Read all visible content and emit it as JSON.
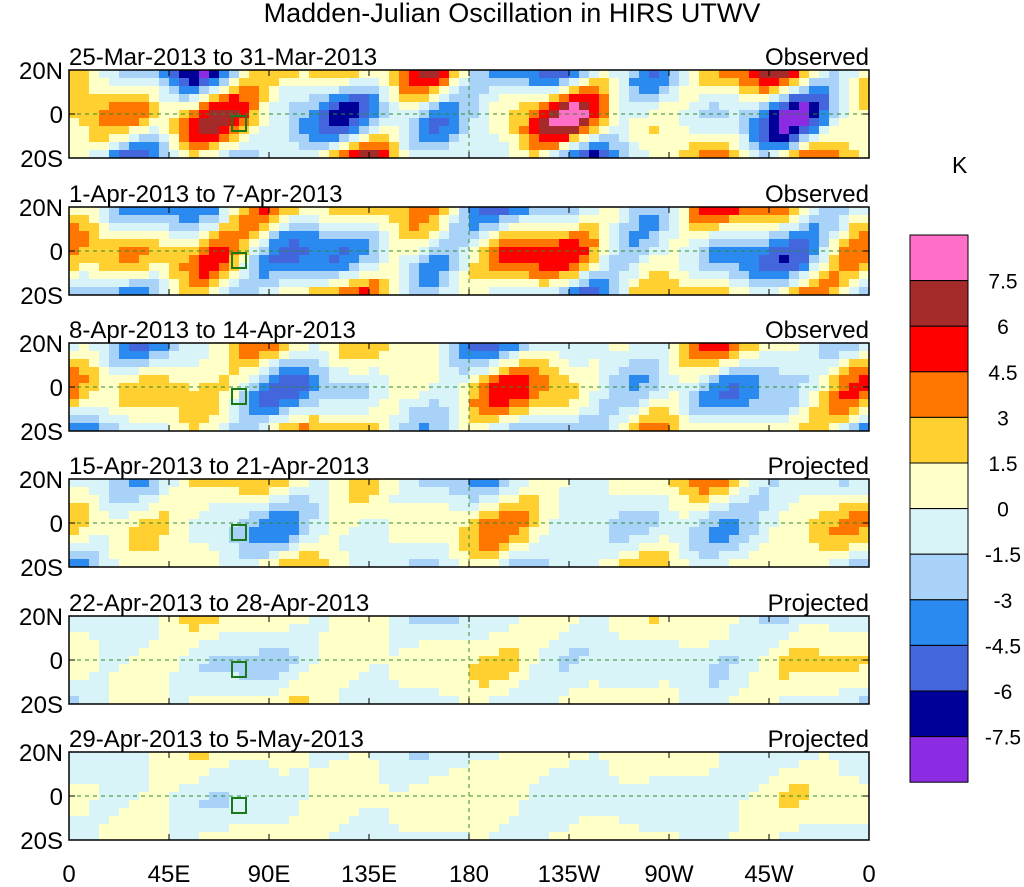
{
  "title": "Madden-Julian Oscillation in HIRS UTWV",
  "unit": "K",
  "lat_labels": [
    "20N",
    "0",
    "20S"
  ],
  "lon_labels": [
    "0",
    "45E",
    "90E",
    "135E",
    "180",
    "135W",
    "90W",
    "45W",
    "0"
  ],
  "panels": [
    {
      "range": "25-Mar-2013 to 31-Mar-2013",
      "status": "Observed",
      "amp": 1.0,
      "phase": 0.0
    },
    {
      "range": "1-Apr-2013 to 7-Apr-2013",
      "status": "Observed",
      "amp": 0.85,
      "phase": 0.5
    },
    {
      "range": "8-Apr-2013 to 14-Apr-2013",
      "status": "Observed",
      "amp": 0.7,
      "phase": 1.0
    },
    {
      "range": "15-Apr-2013 to 21-Apr-2013",
      "status": "Projected",
      "amp": 0.5,
      "phase": 1.5
    },
    {
      "range": "22-Apr-2013 to 28-Apr-2013",
      "status": "Projected",
      "amp": 0.3,
      "phase": 2.0
    },
    {
      "range": "29-Apr-2013 to 5-May-2013",
      "status": "Projected",
      "amp": 0.2,
      "phase": 2.5
    }
  ],
  "colorbar": {
    "colors": [
      "#ff6ec7",
      "#a52a2a",
      "#ff0000",
      "#ff7700",
      "#ffd030",
      "#ffffc8",
      "#d8f4f8",
      "#a8d2f8",
      "#2a8af0",
      "#4466dd",
      "#000099",
      "#8b2be2"
    ],
    "labels": [
      "7.5",
      "6",
      "4.5",
      "3",
      "1.5",
      "0",
      "-1.5",
      "-3",
      "-4.5",
      "-6",
      "-7.5"
    ]
  }
}
